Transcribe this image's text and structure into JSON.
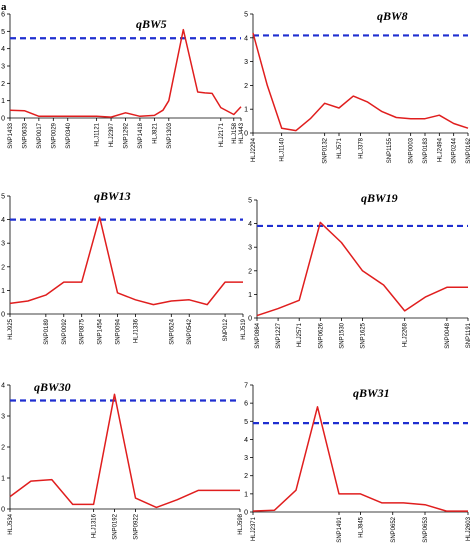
{
  "figure_label": "a",
  "chart_data": [
    {
      "type": "line",
      "title": "qBW5",
      "ylim": [
        0,
        6
      ],
      "yticks": [
        0,
        1,
        2,
        3,
        4,
        5,
        6
      ],
      "threshold": 4.6,
      "markers": [
        "SNP1433",
        "SNP0633",
        "SNP0017",
        "SNP0029",
        "SNP0340",
        "HLJ1121",
        "HLJ2397",
        "SNP1292",
        "SNP1418",
        "HLJ821",
        "SNP1303",
        "HLJ2171",
        "HLJ158",
        "HLJ443"
      ],
      "x": [
        0,
        1,
        2,
        3,
        4,
        5,
        6,
        7,
        8,
        9,
        10,
        10.6,
        11,
        12,
        13,
        13.5,
        14,
        14.6,
        15.5,
        16
      ],
      "y": [
        0.45,
        0.42,
        0.1,
        0.1,
        0.1,
        0.1,
        0.1,
        0.05,
        0.3,
        0.1,
        0.15,
        0.45,
        1.0,
        5.1,
        1.5,
        1.45,
        1.42,
        0.6,
        0.2,
        0.65
      ],
      "marker_pos": [
        0,
        1,
        2,
        3,
        4,
        6,
        7,
        8,
        9,
        10,
        11,
        14.6,
        15.5,
        16
      ]
    },
    {
      "type": "line",
      "title": "qBW8",
      "ylim": [
        0,
        5
      ],
      "yticks": [
        0,
        1,
        2,
        3,
        4,
        5
      ],
      "threshold": 4.1,
      "markers": [
        "HLJ2294",
        "HLJ1140",
        "SNP0132",
        "HLJ571",
        "HLJ378",
        "SNP1155",
        "SNP0003",
        "SNP0183",
        "HLJ2494",
        "SNP0244",
        "SNP0162"
      ],
      "x": [
        0,
        1,
        2,
        3,
        4,
        5,
        6,
        7,
        8,
        9,
        10,
        11,
        12,
        13,
        14,
        15
      ],
      "y": [
        4.2,
        2.0,
        0.2,
        0.1,
        0.6,
        1.25,
        1.05,
        1.55,
        1.3,
        0.9,
        0.65,
        0.6,
        0.6,
        0.75,
        0.4,
        0.2
      ],
      "marker_pos": [
        0,
        2,
        5,
        6,
        7.5,
        9.5,
        11,
        12,
        13,
        14,
        15
      ]
    },
    {
      "type": "line",
      "title": "qBW13",
      "ylim": [
        0,
        5
      ],
      "yticks": [
        0,
        1,
        2,
        3,
        4,
        5
      ],
      "threshold": 4.0,
      "markers": [
        "HLJ925",
        "SNP0189",
        "SNP0092",
        "SNP0875",
        "SNP1454",
        "SNP0094",
        "HLJ1336",
        "SNP0524",
        "SNP0542",
        "SNP012",
        "HLJ519"
      ],
      "x": [
        0,
        1,
        2,
        3,
        4,
        5,
        6,
        7,
        8,
        9,
        10,
        11,
        12,
        13
      ],
      "y": [
        0.45,
        0.55,
        0.8,
        1.35,
        1.35,
        4.1,
        0.9,
        0.6,
        0.4,
        0.55,
        0.6,
        0.4,
        1.35,
        1.35
      ],
      "marker_pos": [
        0,
        2,
        3,
        4,
        5,
        6,
        7,
        9,
        10,
        12,
        13
      ]
    },
    {
      "type": "line",
      "title": "qBW19",
      "ylim": [
        0,
        5
      ],
      "yticks": [
        0,
        1,
        2,
        3,
        4,
        5
      ],
      "threshold": 3.9,
      "markers": [
        "SNP0864",
        "SNP1227",
        "HLJ2571",
        "SNP0626",
        "SNP1530",
        "SNP1625",
        "HLJ2268",
        "SNP0048",
        "SNP1191"
      ],
      "x": [
        0,
        1,
        2,
        3,
        4,
        5,
        6,
        7,
        8,
        9,
        10
      ],
      "y": [
        0.1,
        0.4,
        0.75,
        4.05,
        3.2,
        2.0,
        1.4,
        0.3,
        0.9,
        1.3,
        1.3
      ],
      "marker_pos": [
        0,
        1,
        2,
        3,
        4,
        5,
        7,
        9,
        10
      ]
    },
    {
      "type": "line",
      "title": "qBW30",
      "ylim": [
        0,
        4
      ],
      "yticks": [
        0,
        1,
        2,
        3,
        4
      ],
      "threshold": 3.5,
      "markers": [
        "HLJ534",
        "HLJ1316",
        "SNP0192",
        "SNP0922",
        "HLJ598"
      ],
      "x": [
        0,
        1,
        2,
        3,
        4,
        5,
        6,
        7,
        8,
        9,
        10,
        11
      ],
      "y": [
        0.4,
        0.9,
        0.95,
        0.15,
        0.15,
        3.7,
        0.35,
        0.05,
        0.3,
        0.6,
        0.6,
        0.6
      ],
      "marker_pos": [
        0,
        4,
        5,
        6,
        11
      ]
    },
    {
      "type": "line",
      "title": "qBW31",
      "ylim": [
        0,
        7
      ],
      "yticks": [
        0,
        1,
        2,
        3,
        4,
        5,
        6,
        7
      ],
      "threshold": 4.9,
      "markers": [
        "HLJ2371",
        "SNP1491",
        "HLJ845",
        "SNP0652",
        "SNP0653",
        "HLJ2603"
      ],
      "x": [
        0,
        1,
        2,
        3,
        4,
        5,
        6,
        7,
        8,
        9,
        10
      ],
      "y": [
        0.05,
        0.1,
        1.2,
        5.8,
        1.0,
        1.0,
        0.5,
        0.5,
        0.4,
        0.05,
        0.05
      ],
      "marker_pos": [
        0,
        4,
        5,
        6.5,
        8,
        10
      ]
    }
  ]
}
